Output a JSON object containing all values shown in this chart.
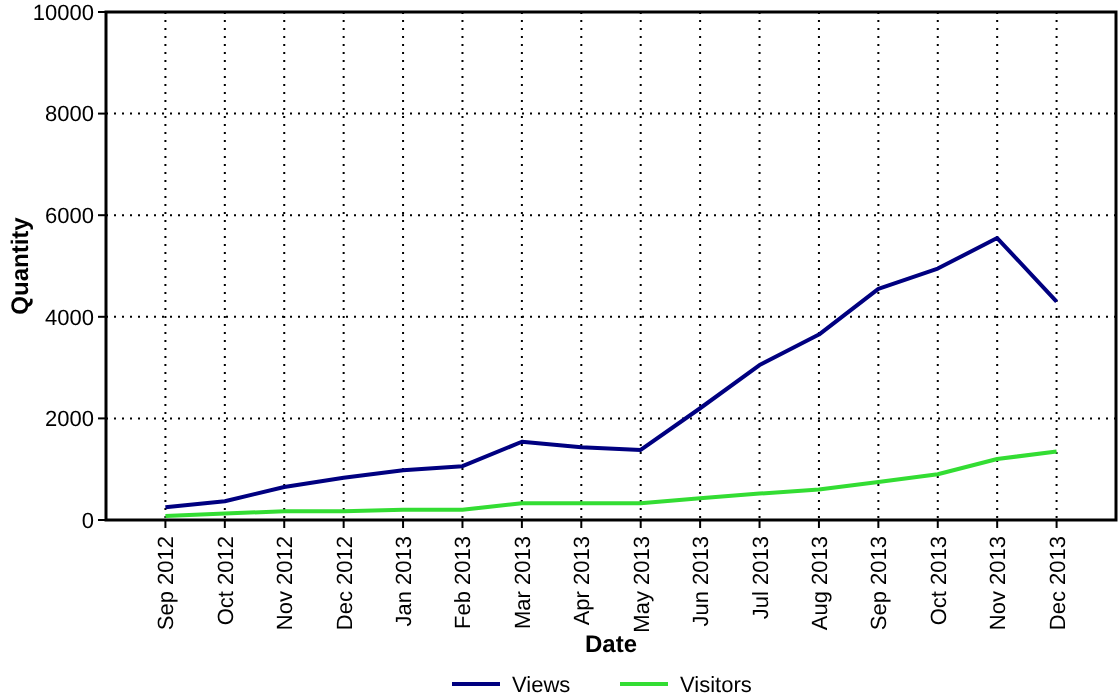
{
  "chart_data": {
    "type": "line",
    "xlabel": "Date",
    "ylabel": "Quantity",
    "categories": [
      "Sep 2012",
      "Oct 2012",
      "Nov 2012",
      "Dec 2012",
      "Jan 2013",
      "Feb 2013",
      "Mar 2013",
      "Apr 2013",
      "May 2013",
      "Jun 2013",
      "Jul 2013",
      "Aug 2013",
      "Sep 2013",
      "Oct 2013",
      "Nov 2013",
      "Dec 2013"
    ],
    "series": [
      {
        "name": "Views",
        "color": "#000080",
        "values": [
          250,
          370,
          650,
          830,
          980,
          1060,
          1540,
          1430,
          1380,
          2200,
          3050,
          3650,
          4550,
          4950,
          5550,
          4300
        ]
      },
      {
        "name": "Visitors",
        "color": "#33dd33",
        "values": [
          80,
          130,
          170,
          170,
          200,
          200,
          330,
          330,
          330,
          430,
          520,
          600,
          750,
          900,
          1200,
          1350
        ]
      }
    ],
    "ylim": [
      0,
      10000
    ],
    "yticks": [
      0,
      2000,
      4000,
      6000,
      8000,
      10000
    ],
    "grid": true,
    "legend": "bottom",
    "line_style": "solid",
    "marker": "none"
  }
}
